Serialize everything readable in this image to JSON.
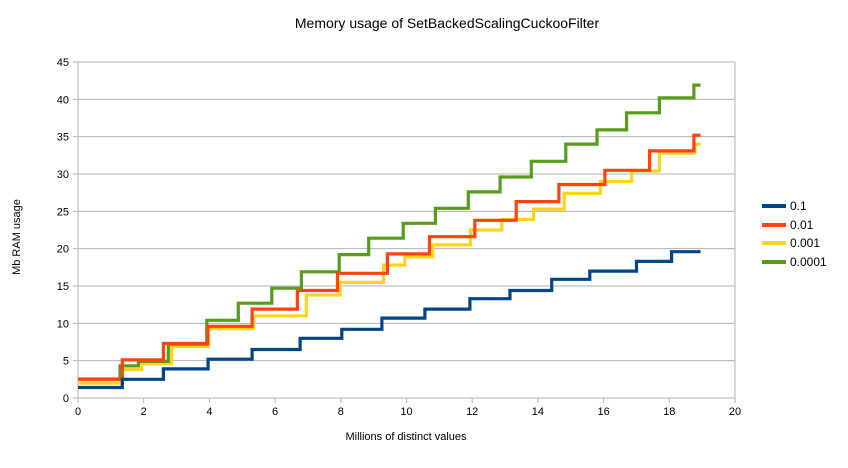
{
  "title": "Memory usage of SetBackedScalingCuckooFilter",
  "colors": {
    "background": "#ffffff",
    "grid": "#b3b3b3",
    "axis": "#b3b3b3",
    "text": "#000000"
  },
  "chart_data": {
    "type": "line",
    "interpolation": "step-after",
    "title": "Memory usage of SetBackedScalingCuckooFilter",
    "xlabel": "Millions of distinct values",
    "ylabel": "Mb RAM usage",
    "xlim": [
      0,
      20
    ],
    "ylim": [
      0,
      45
    ],
    "x_ticks": [
      0,
      2,
      4,
      6,
      8,
      10,
      12,
      14,
      16,
      18,
      20
    ],
    "y_ticks": [
      0,
      5,
      10,
      15,
      20,
      25,
      30,
      35,
      40,
      45
    ],
    "grid": "horizontal-only",
    "legend_position": "right",
    "line_width": 3.2,
    "x_end": 18.95,
    "draw_order": [
      2,
      3,
      1,
      0
    ],
    "series": [
      {
        "name": "0.1",
        "color": "#004586",
        "steps": [
          [
            0,
            1.4
          ],
          [
            1.35,
            2.5
          ],
          [
            2.6,
            3.9
          ],
          [
            3.96,
            5.2
          ],
          [
            5.3,
            6.5
          ],
          [
            6.76,
            8.0
          ],
          [
            8.03,
            9.2
          ],
          [
            9.25,
            10.7
          ],
          [
            10.56,
            11.9
          ],
          [
            11.93,
            13.3
          ],
          [
            13.15,
            14.4
          ],
          [
            14.42,
            15.9
          ],
          [
            15.58,
            17.0
          ],
          [
            17.0,
            18.3
          ],
          [
            18.07,
            19.6
          ]
        ]
      },
      {
        "name": "0.01",
        "color": "#ff420e",
        "steps": [
          [
            0,
            2.5
          ],
          [
            1.35,
            5.1
          ],
          [
            2.6,
            7.3
          ],
          [
            3.95,
            9.6
          ],
          [
            5.3,
            11.9
          ],
          [
            6.68,
            14.4
          ],
          [
            7.9,
            16.7
          ],
          [
            9.42,
            19.3
          ],
          [
            10.7,
            21.6
          ],
          [
            12.08,
            23.8
          ],
          [
            13.34,
            26.3
          ],
          [
            14.64,
            28.6
          ],
          [
            16.04,
            30.5
          ],
          [
            17.4,
            33.1
          ],
          [
            18.75,
            35.2
          ]
        ]
      },
      {
        "name": "0.001",
        "color": "#ffd320",
        "steps": [
          [
            0,
            2.0
          ],
          [
            1.28,
            3.8
          ],
          [
            1.94,
            4.6
          ],
          [
            2.85,
            6.9
          ],
          [
            3.97,
            9.3
          ],
          [
            5.35,
            11.0
          ],
          [
            6.95,
            13.8
          ],
          [
            7.98,
            15.5
          ],
          [
            9.3,
            17.8
          ],
          [
            9.95,
            18.9
          ],
          [
            10.8,
            20.5
          ],
          [
            11.95,
            22.5
          ],
          [
            12.9,
            23.9
          ],
          [
            13.87,
            25.3
          ],
          [
            14.8,
            27.4
          ],
          [
            15.9,
            29.0
          ],
          [
            16.85,
            30.4
          ],
          [
            17.7,
            32.8
          ],
          [
            18.78,
            34.0
          ]
        ]
      },
      {
        "name": "0.0001",
        "color": "#579d1c",
        "steps": [
          [
            0,
            2.55
          ],
          [
            1.28,
            4.3
          ],
          [
            1.84,
            4.9
          ],
          [
            2.75,
            7.2
          ],
          [
            3.92,
            10.4
          ],
          [
            4.88,
            12.7
          ],
          [
            5.9,
            14.7
          ],
          [
            6.8,
            16.9
          ],
          [
            7.95,
            19.2
          ],
          [
            8.85,
            21.4
          ],
          [
            9.9,
            23.4
          ],
          [
            10.88,
            25.4
          ],
          [
            11.88,
            27.6
          ],
          [
            12.85,
            29.6
          ],
          [
            13.8,
            31.7
          ],
          [
            14.85,
            34.0
          ],
          [
            15.8,
            35.9
          ],
          [
            16.7,
            38.2
          ],
          [
            17.7,
            40.2
          ],
          [
            18.75,
            41.9
          ]
        ]
      }
    ]
  }
}
